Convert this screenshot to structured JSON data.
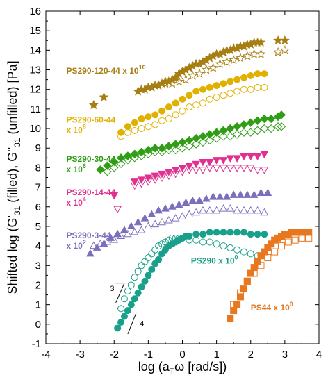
{
  "chart_data": {
    "type": "scatter",
    "xlabel": "log (a",
    "xlabel_sub": "T",
    "xlabel_rest": "ω [rad/s])",
    "ylabel": "Shifted log (G'31 (filled), G''31 (unfilled) [Pa]",
    "ylabel_parts": [
      "Shifted log (G'",
      "31",
      " (filled), G''",
      "31",
      " (unfilled) [Pa]"
    ],
    "xlim": [
      -4,
      4
    ],
    "ylim": [
      -1,
      16
    ],
    "xticks": [
      -4,
      -3,
      -2,
      -1,
      0,
      1,
      2,
      3,
      4
    ],
    "yticks": [
      -1,
      0,
      1,
      2,
      3,
      4,
      5,
      6,
      7,
      8,
      9,
      10,
      11,
      12,
      13,
      14,
      15,
      16
    ],
    "grid": false,
    "labels": [
      {
        "name": "PS290-120-44",
        "lines": [
          "PS290-120-44  x 10",
          ""
        ],
        "sup": "10",
        "color": "#a77e12",
        "x": -3.4,
        "y": 12.8
      },
      {
        "name": "PS290-60-44",
        "lines": [
          "PS290-60-44",
          "x 10"
        ],
        "sup": "8",
        "color": "#e0b100",
        "x": -3.4,
        "y": 10.3
      },
      {
        "name": "PS290-30-44",
        "lines": [
          "PS290-30-44",
          "x 10"
        ],
        "sup": "6",
        "color": "#2f9e14",
        "x": -3.4,
        "y": 8.3
      },
      {
        "name": "PS290-14-44",
        "lines": [
          "PS290-14-44",
          "x 10"
        ],
        "sup": "4",
        "color": "#e03090",
        "x": -3.4,
        "y": 6.6
      },
      {
        "name": "PS290-3-44",
        "lines": [
          "PS290-3-44",
          "x 10"
        ],
        "sup": "2",
        "color": "#7a6fbd",
        "x": -3.4,
        "y": 4.4
      },
      {
        "name": "PS290",
        "lines": [
          "PS290  x 10",
          ""
        ],
        "sup": "0",
        "color": "#19a08a",
        "x": 0.25,
        "y": 3.1
      },
      {
        "name": "PS44",
        "lines": [
          "PS44  x 10",
          ""
        ],
        "sup": "0",
        "color": "#e87820",
        "x": 2.0,
        "y": 0.7
      }
    ],
    "slope_labels": [
      {
        "text": "3",
        "x": -2.12,
        "y": 1.7
      },
      {
        "text": "4",
        "x": -1.25,
        "y": -0.1
      }
    ],
    "series": [
      {
        "name": "PS290-120-44",
        "color": "#a77e12",
        "marker": "star",
        "filled": {
          "x": [
            -2.6,
            -2.3,
            -1.3,
            -1.2,
            -1.1,
            -1.0,
            -0.9,
            -0.8,
            -0.7,
            -0.6,
            -0.5,
            -0.4,
            -0.3,
            -0.2,
            -0.1,
            0.0,
            0.1,
            0.2,
            0.3,
            0.4,
            0.5,
            0.6,
            0.7,
            0.8,
            0.9,
            1.0,
            1.1,
            1.2,
            1.3,
            1.4,
            1.5,
            1.6,
            1.7,
            1.8,
            1.9,
            2.0,
            2.1,
            2.2,
            2.3,
            2.8,
            3.0
          ],
          "y": [
            11.2,
            11.6,
            11.9,
            12.0,
            12.0,
            12.1,
            12.1,
            12.2,
            12.2,
            12.3,
            12.4,
            12.4,
            12.5,
            12.6,
            12.8,
            12.9,
            13.0,
            13.1,
            13.2,
            13.3,
            13.3,
            13.4,
            13.5,
            13.6,
            13.7,
            13.8,
            13.8,
            13.9,
            14.0,
            14.0,
            14.1,
            14.1,
            14.2,
            14.2,
            14.3,
            14.3,
            14.4,
            14.4,
            14.4,
            14.5,
            14.5
          ]
        },
        "open": {
          "x": [
            -1.3,
            -1.1,
            -0.9,
            -0.7,
            -0.5,
            -0.3,
            -0.1,
            0.1,
            0.3,
            0.5,
            0.7,
            0.9,
            1.1,
            1.3,
            1.5,
            1.7,
            1.9,
            2.1,
            2.3,
            2.8,
            3.0
          ],
          "y": [
            11.9,
            12.0,
            12.1,
            12.2,
            12.3,
            12.3,
            12.4,
            12.5,
            12.7,
            12.8,
            13.0,
            13.1,
            13.3,
            13.4,
            13.5,
            13.6,
            13.7,
            13.8,
            13.8,
            13.9,
            14.0
          ]
        }
      },
      {
        "name": "PS290-60-44",
        "color": "#e0b100",
        "marker": "circle",
        "filled": {
          "x": [
            -1.8,
            -1.6,
            -1.4,
            -1.2,
            -1.0,
            -0.8,
            -0.6,
            -0.4,
            -0.2,
            0.0,
            0.2,
            0.4,
            0.6,
            0.8,
            1.0,
            1.2,
            1.4,
            1.6,
            1.8,
            2.0,
            2.2,
            2.4
          ],
          "y": [
            9.8,
            10.1,
            10.3,
            10.5,
            10.6,
            10.7,
            10.9,
            11.1,
            11.3,
            11.5,
            11.7,
            11.9,
            12.0,
            12.1,
            12.2,
            12.3,
            12.4,
            12.5,
            12.6,
            12.7,
            12.8,
            12.8
          ]
        },
        "open": {
          "x": [
            -1.8,
            -1.6,
            -1.4,
            -1.2,
            -1.0,
            -0.8,
            -0.6,
            -0.4,
            -0.2,
            0.0,
            0.2,
            0.4,
            0.6,
            0.8,
            1.0,
            1.2,
            1.4,
            1.6,
            1.8,
            2.0,
            2.2,
            2.4
          ],
          "y": [
            9.6,
            9.8,
            9.9,
            10.0,
            10.1,
            10.2,
            10.4,
            10.5,
            10.7,
            10.9,
            11.1,
            11.2,
            11.3,
            11.5,
            11.6,
            11.7,
            11.8,
            11.9,
            12.0,
            12.0,
            12.1,
            12.1
          ]
        }
      },
      {
        "name": "PS290-30-44",
        "color": "#2f9e14",
        "marker": "diamond",
        "filled": {
          "x": [
            -2.4,
            -2.2,
            -2.0,
            -1.8,
            -1.6,
            -1.4,
            -1.2,
            -1.0,
            -0.8,
            -0.6,
            -0.4,
            -0.2,
            0.0,
            0.2,
            0.4,
            0.6,
            0.8,
            1.0,
            1.2,
            1.4,
            1.6,
            1.8,
            2.0,
            2.2,
            2.4,
            2.6,
            2.8,
            2.9
          ],
          "y": [
            7.9,
            8.1,
            8.3,
            8.5,
            8.6,
            8.7,
            8.8,
            8.9,
            9.0,
            9.0,
            9.1,
            9.2,
            9.3,
            9.4,
            9.5,
            9.6,
            9.7,
            9.8,
            9.9,
            10.0,
            10.1,
            10.2,
            10.3,
            10.4,
            10.5,
            10.5,
            10.6,
            10.7
          ]
        },
        "open": {
          "x": [
            -2.2,
            -2.0,
            -1.8,
            -1.6,
            -1.4,
            -1.2,
            -1.0,
            -0.8,
            -0.6,
            -0.4,
            -0.2,
            0.0,
            0.2,
            0.4,
            0.6,
            0.8,
            1.0,
            1.2,
            1.4,
            1.6,
            1.8,
            2.0,
            2.2,
            2.4,
            2.6,
            2.8,
            2.9
          ],
          "y": [
            7.8,
            8.0,
            8.2,
            8.4,
            8.5,
            8.6,
            8.7,
            8.8,
            8.8,
            8.9,
            8.9,
            9.0,
            9.1,
            9.2,
            9.3,
            9.4,
            9.5,
            9.6,
            9.6,
            9.7,
            9.8,
            9.8,
            9.9,
            10.0,
            10.0,
            10.1,
            10.1
          ]
        }
      },
      {
        "name": "PS290-14-44",
        "color": "#e03090",
        "marker": "tri-down",
        "filled": {
          "x": [
            -2.0,
            -1.4,
            -1.2,
            -1.0,
            -0.8,
            -0.6,
            -0.4,
            -0.2,
            0.0,
            0.2,
            0.4,
            0.6,
            0.8,
            1.0,
            1.2,
            1.4,
            1.6,
            1.8,
            2.0,
            2.2,
            2.4
          ],
          "y": [
            6.6,
            7.3,
            7.4,
            7.5,
            7.6,
            7.7,
            7.8,
            7.9,
            8.0,
            8.1,
            8.2,
            8.3,
            8.3,
            8.4,
            8.4,
            8.5,
            8.5,
            8.6,
            8.6,
            8.6,
            8.7
          ]
        },
        "open": {
          "x": [
            -1.9,
            -1.4,
            -1.2,
            -1.0,
            -0.8,
            -0.6,
            -0.4,
            -0.2,
            0.0,
            0.2,
            0.4,
            0.6,
            0.8,
            1.0,
            1.2,
            1.4,
            1.6,
            1.8,
            2.0,
            2.2,
            2.4
          ],
          "y": [
            5.9,
            7.1,
            7.2,
            7.3,
            7.4,
            7.5,
            7.6,
            7.7,
            7.8,
            7.9,
            7.9,
            7.9,
            8.0,
            8.0,
            8.0,
            8.0,
            8.0,
            8.0,
            8.0,
            7.9,
            7.9
          ]
        }
      },
      {
        "name": "PS290-3-44",
        "color": "#7a6fbd",
        "marker": "tri-up",
        "filled": {
          "x": [
            -2.7,
            -2.5,
            -2.3,
            -2.1,
            -1.9,
            -1.7,
            -1.5,
            -1.3,
            -1.1,
            -0.9,
            -0.7,
            -0.5,
            -0.3,
            -0.1,
            0.1,
            0.3,
            0.5,
            0.7,
            0.9,
            1.1,
            1.3,
            1.5,
            1.7,
            1.9,
            2.1,
            2.3,
            2.5
          ],
          "y": [
            3.6,
            3.9,
            4.1,
            4.4,
            4.6,
            4.8,
            5.0,
            5.2,
            5.4,
            5.6,
            5.8,
            5.9,
            6.0,
            6.1,
            6.2,
            6.3,
            6.3,
            6.4,
            6.5,
            6.5,
            6.5,
            6.6,
            6.6,
            6.6,
            6.6,
            6.7,
            6.7
          ]
        },
        "open": {
          "x": [
            -2.6,
            -2.4,
            -2.2,
            -2.0,
            -1.8,
            -1.6,
            -1.4,
            -1.2,
            -1.0,
            -0.8,
            -0.6,
            -0.4,
            -0.2,
            0.0,
            0.2,
            0.4,
            0.6,
            0.8,
            1.0,
            1.2,
            1.4,
            1.6,
            1.8,
            2.0,
            2.2,
            2.4
          ],
          "y": [
            4.0,
            4.1,
            4.2,
            4.3,
            4.5,
            4.6,
            4.7,
            4.8,
            5.0,
            5.1,
            5.2,
            5.3,
            5.4,
            5.5,
            5.6,
            5.7,
            5.8,
            5.8,
            5.8,
            5.9,
            5.9,
            5.8,
            5.8,
            5.8,
            5.8,
            5.7
          ]
        }
      },
      {
        "name": "PS290",
        "color": "#19a08a",
        "marker": "circle",
        "filled": {
          "x": [
            -1.9,
            -1.8,
            -1.7,
            -1.6,
            -1.5,
            -1.4,
            -1.3,
            -1.2,
            -1.1,
            -1.0,
            -0.9,
            -0.8,
            -0.7,
            -0.6,
            -0.5,
            -0.4,
            -0.3,
            -0.2,
            -0.1,
            0.0,
            0.1,
            0.2,
            0.4,
            0.6,
            0.8,
            1.0,
            1.2,
            1.4,
            1.6,
            1.8,
            2.0,
            2.2,
            2.4
          ],
          "y": [
            -0.2,
            0.1,
            0.4,
            0.7,
            1.0,
            1.3,
            1.6,
            1.9,
            2.2,
            2.5,
            2.8,
            3.1,
            3.3,
            3.6,
            3.8,
            4.0,
            4.1,
            4.2,
            4.3,
            4.4,
            4.5,
            4.5,
            4.6,
            4.6,
            4.7,
            4.7,
            4.7,
            4.7,
            4.7,
            4.7,
            4.6,
            4.6,
            4.6
          ]
        },
        "open": {
          "x": [
            -1.8,
            -1.7,
            -1.6,
            -1.5,
            -1.4,
            -1.3,
            -1.2,
            -1.1,
            -1.0,
            -0.9,
            -0.8,
            -0.7,
            -0.6,
            -0.5,
            -0.4,
            -0.3,
            -0.2,
            -0.1,
            0.0,
            0.2,
            0.4,
            0.6,
            0.8,
            1.0,
            1.2,
            1.4,
            1.6,
            1.8,
            2.0,
            2.2
          ],
          "y": [
            0.8,
            1.3,
            1.7,
            2.0,
            2.4,
            2.7,
            3.0,
            3.2,
            3.4,
            3.6,
            3.8,
            4.0,
            4.1,
            4.2,
            4.3,
            4.4,
            4.4,
            4.4,
            4.4,
            4.3,
            4.3,
            4.2,
            4.2,
            4.1,
            4.0,
            3.9,
            3.8,
            3.7,
            3.6,
            3.5
          ]
        }
      },
      {
        "name": "PS44",
        "color": "#e87820",
        "marker": "square",
        "filled": {
          "x": [
            1.4,
            1.5,
            1.6,
            1.7,
            1.8,
            1.9,
            2.0,
            2.1,
            2.2,
            2.3,
            2.4,
            2.5,
            2.6,
            2.7,
            2.8,
            2.9,
            3.0,
            3.1,
            3.2,
            3.3,
            3.4,
            3.5,
            3.6,
            3.7
          ],
          "y": [
            0.3,
            0.7,
            1.0,
            1.4,
            1.8,
            2.2,
            2.6,
            2.9,
            3.2,
            3.5,
            3.7,
            3.9,
            4.1,
            4.3,
            4.4,
            4.5,
            4.6,
            4.6,
            4.7,
            4.7,
            4.7,
            4.7,
            4.7,
            4.7
          ]
        },
        "open": {
          "x": [
            1.5,
            1.7,
            1.9,
            2.1,
            2.3,
            2.5,
            2.7,
            2.9,
            3.1,
            3.3,
            3.5,
            3.7
          ],
          "y": [
            1.0,
            1.6,
            2.2,
            2.6,
            3.0,
            3.4,
            3.7,
            4.0,
            4.2,
            4.3,
            4.4,
            4.4
          ]
        }
      }
    ]
  }
}
